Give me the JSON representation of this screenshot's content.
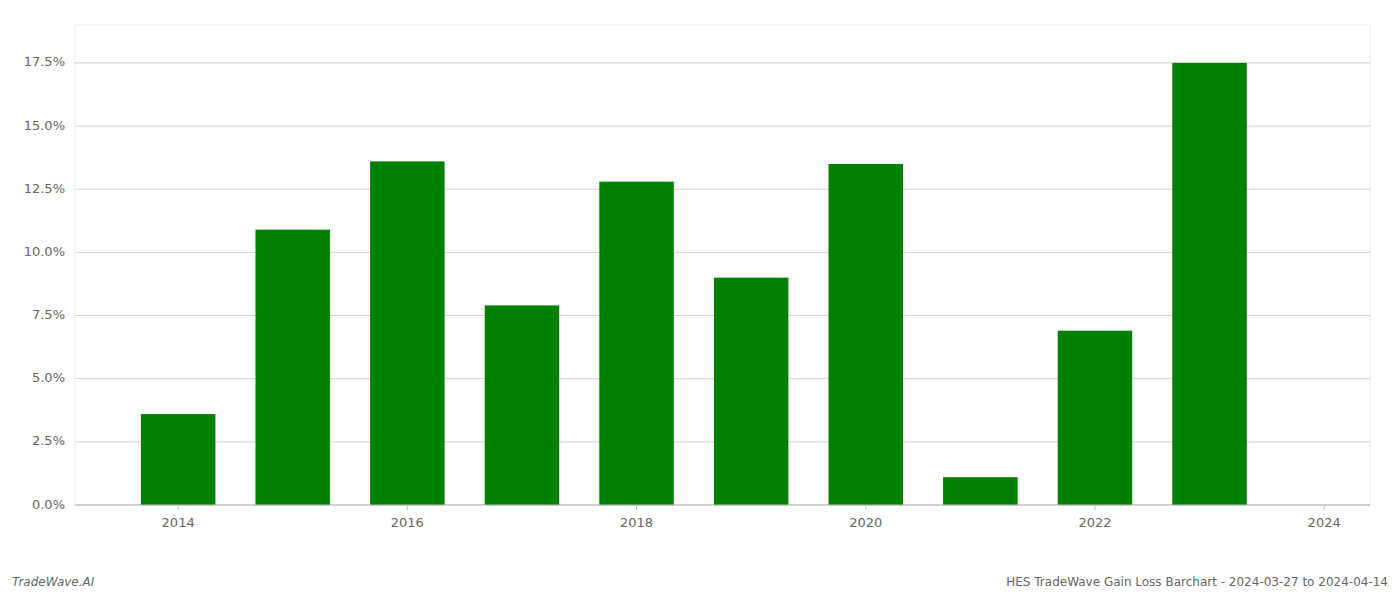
{
  "chart_data": {
    "type": "bar",
    "title": "HES TradeWave Gain Loss Barchart - 2024-03-27 to 2024-04-14",
    "annotations": [
      "TradeWave.AI"
    ],
    "x": [
      2014,
      2015,
      2016,
      2017,
      2018,
      2019,
      2020,
      2021,
      2022,
      2023
    ],
    "values": [
      0.036,
      0.109,
      0.136,
      0.079,
      0.128,
      0.09,
      0.135,
      0.011,
      0.069,
      0.175
    ],
    "color": "#008000",
    "xlim": [
      2013.1,
      2024.4
    ],
    "xticks": [
      2014,
      2016,
      2018,
      2020,
      2022,
      2024
    ],
    "ylim": [
      0,
      0.19
    ],
    "yticks": [
      {
        "value": 0.0,
        "label": "0.0%"
      },
      {
        "value": 0.025,
        "label": "2.5%"
      },
      {
        "value": 0.05,
        "label": "5.0%"
      },
      {
        "value": 0.075,
        "label": "7.5%"
      },
      {
        "value": 0.1,
        "label": "10.0%"
      },
      {
        "value": 0.125,
        "label": "12.5%"
      },
      {
        "value": 0.15,
        "label": "15.0%"
      },
      {
        "value": 0.175,
        "label": "17.5%"
      }
    ],
    "grid": true
  }
}
